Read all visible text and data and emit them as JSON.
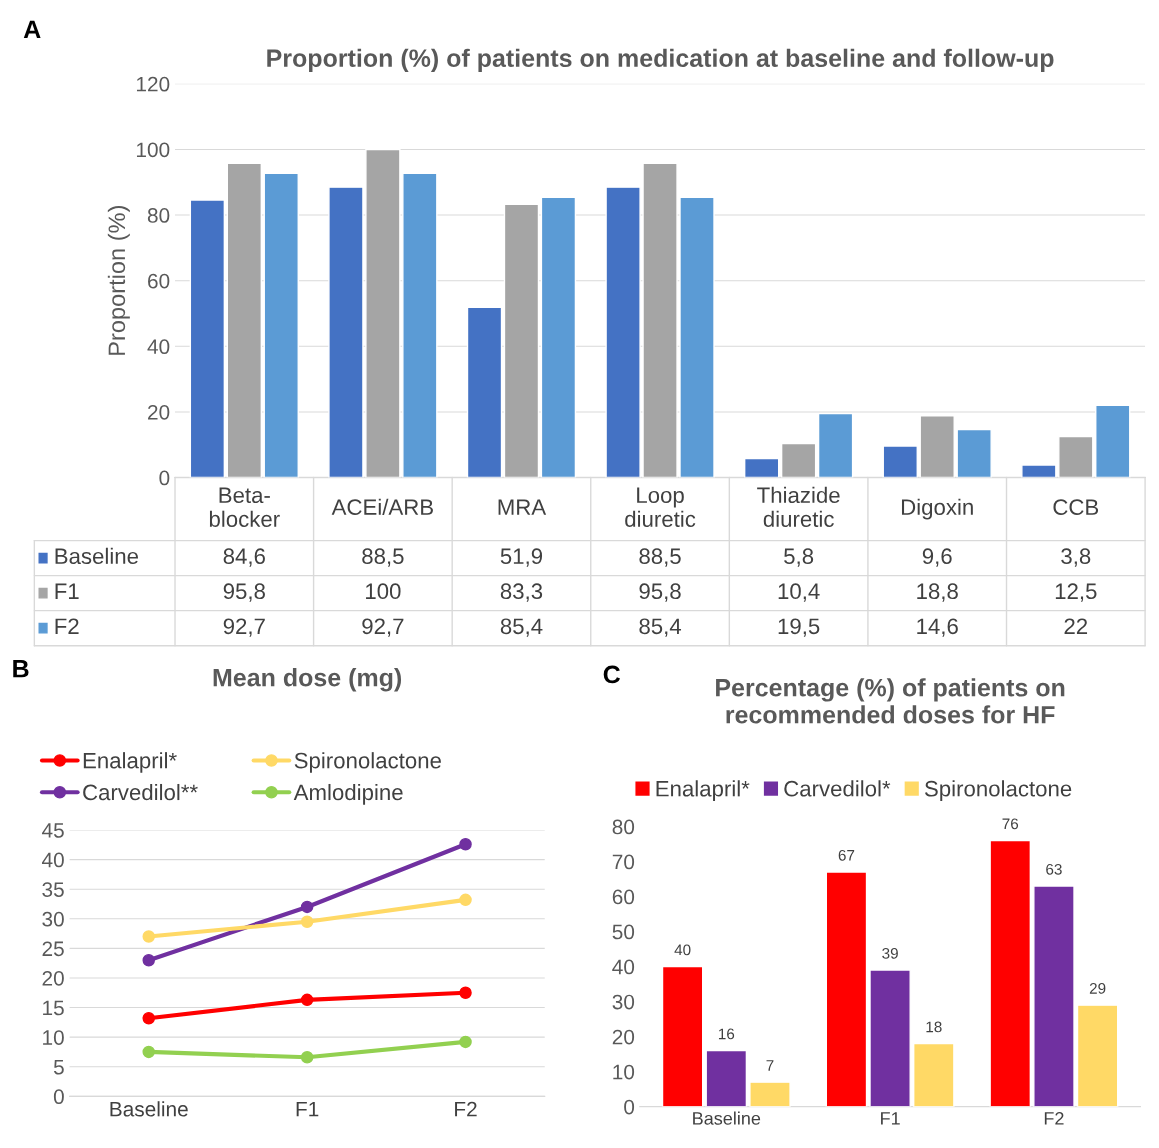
{
  "chart_data": [
    {
      "type": "bar",
      "title": "Proportion (%) of patients on medication at baseline and follow-up",
      "ylabel": "Proportion (%)",
      "annotations": [
        "A"
      ],
      "categories": [
        "Beta-\nblocker",
        "ACEi/ARB",
        "MRA",
        "Loop\ndiuretic",
        "Thiazide\ndiuretic",
        "Digoxin",
        "CCB"
      ],
      "series": [
        {
          "name": "Baseline",
          "color": "#4472c4",
          "values": [
            84.6,
            88.5,
            51.9,
            88.5,
            5.8,
            9.6,
            3.8
          ],
          "value_labels": [
            "84,6",
            "88,5",
            "51,9",
            "88,5",
            "5,8",
            "9,6",
            "3,8"
          ]
        },
        {
          "name": "F1",
          "color": "#a5a5a5",
          "values": [
            95.8,
            100,
            83.3,
            95.8,
            10.4,
            18.8,
            12.5
          ],
          "value_labels": [
            "95,8",
            "100",
            "83,3",
            "95,8",
            "10,4",
            "18,8",
            "12,5"
          ]
        },
        {
          "name": "F2",
          "color": "#5b9bd5",
          "values": [
            92.7,
            92.7,
            85.4,
            85.4,
            19.5,
            14.6,
            22
          ],
          "value_labels": [
            "92,7",
            "92,7",
            "85,4",
            "85,4",
            "19,5",
            "14,6",
            "22"
          ]
        }
      ],
      "ylim": [
        0,
        120
      ],
      "yticks": [
        0,
        20,
        40,
        60,
        80,
        100,
        120
      ],
      "grid": "y",
      "legend": "bottom"
    },
    {
      "type": "line",
      "title": "Mean dose (mg)",
      "annotations": [
        "B"
      ],
      "categories": [
        "Baseline",
        "F1",
        "F2"
      ],
      "series": [
        {
          "name": "Enalapril*",
          "color": "#ff0000",
          "values": [
            13.2,
            16.3,
            17.5
          ]
        },
        {
          "name": "Carvedilol**",
          "color": "#7030a0",
          "values": [
            23,
            32,
            42.6
          ]
        },
        {
          "name": "Spironolactone",
          "color": "#ffd966",
          "values": [
            27,
            29.5,
            33.2
          ]
        },
        {
          "name": "Amlodipine",
          "color": "#92d050",
          "values": [
            7.5,
            6.6,
            9.2
          ]
        }
      ],
      "ylim": [
        0,
        45
      ],
      "yticks": [
        0,
        5,
        10,
        15,
        20,
        25,
        30,
        35,
        40,
        45
      ],
      "grid": "y",
      "legend": "top",
      "marker": "circle",
      "line_style": "solid"
    },
    {
      "type": "bar",
      "title": "Percentage (%) of patients on\nrecommended doses for HF",
      "annotations": [
        "C"
      ],
      "categories": [
        "Baseline",
        "F1",
        "F2"
      ],
      "series": [
        {
          "name": "Enalapril*",
          "color": "#ff0000",
          "values": [
            40,
            67,
            76
          ]
        },
        {
          "name": "Carvedilol*",
          "color": "#7030a0",
          "values": [
            16,
            39,
            63
          ]
        },
        {
          "name": "Spironolactone",
          "color": "#ffd966",
          "values": [
            7,
            18,
            29
          ]
        }
      ],
      "ylim": [
        0,
        80
      ],
      "yticks": [
        0,
        10,
        20,
        30,
        40,
        50,
        60,
        70,
        80
      ],
      "grid": false,
      "legend": "top",
      "data_labels": true
    }
  ]
}
